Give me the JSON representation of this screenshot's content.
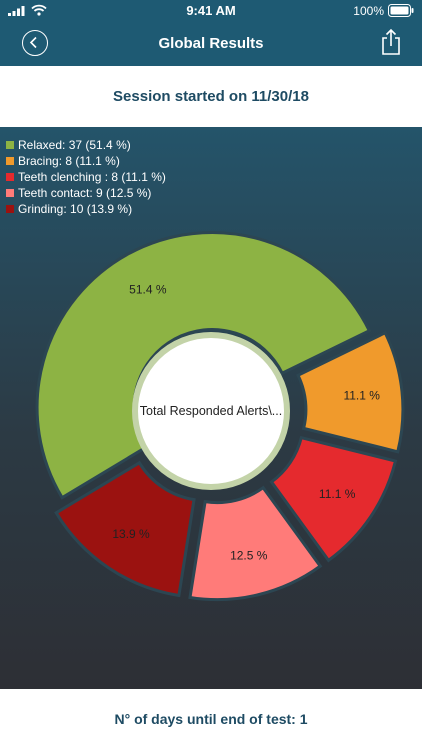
{
  "status_bar": {
    "time": "9:41 AM",
    "battery": "100%"
  },
  "header": {
    "title": "Global Results"
  },
  "session": {
    "text": "Session started on 11/30/18"
  },
  "chart_data": {
    "type": "pie",
    "categories": [
      "Relaxed",
      "Bracing",
      "Teeth clenching",
      "Teeth contact",
      "Grinding"
    ],
    "values": [
      37,
      8,
      8,
      9,
      10
    ],
    "percent_labels": [
      "51.4 %",
      "11.1 %",
      "11.1 %",
      "12.5 %",
      "13.9 %"
    ],
    "legend_labels": [
      "Relaxed: 37 (51.4 %)",
      "Bracing: 8 (11.1 %)",
      "Teeth clenching : 8 (11.1 %)",
      "Teeth contact: 9 (12.5 %)",
      "Grinding: 10 (13.9 %)"
    ],
    "colors": [
      "#8db344",
      "#f09a2c",
      "#e52a2e",
      "#ff7b79",
      "#9b1210"
    ],
    "center_label": "Total Responded Alerts\\...",
    "legend_position": "top-left"
  },
  "footer": {
    "text": "N° of days until end of test: 1"
  }
}
